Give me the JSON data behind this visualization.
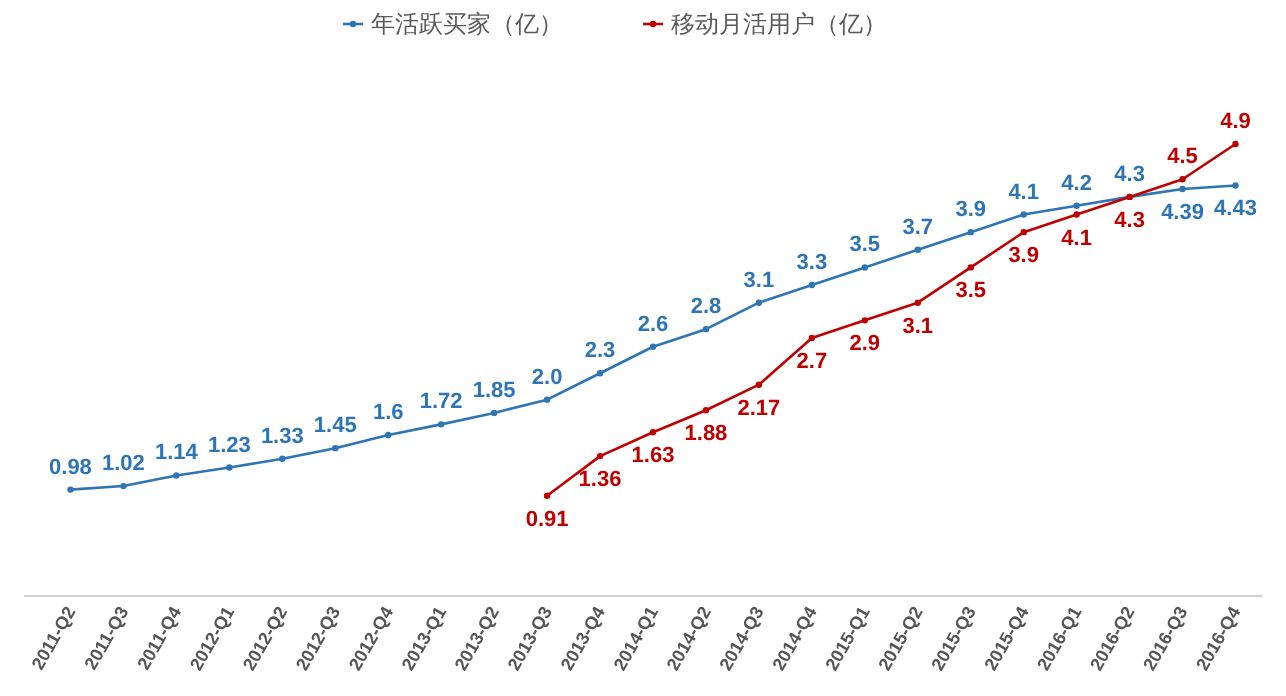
{
  "chart_data": {
    "type": "line",
    "legend": "top",
    "marker": "circle",
    "line_style": "solid",
    "categories": [
      "2011-Q2",
      "2011-Q3",
      "2011-Q4",
      "2012-Q1",
      "2012-Q2",
      "2012-Q3",
      "2012-Q4",
      "2013-Q1",
      "2013-Q2",
      "2013-Q3",
      "2013-Q4",
      "2014-Q1",
      "2014-Q2",
      "2014-Q3",
      "2014-Q4",
      "2015-Q1",
      "2015-Q2",
      "2015-Q3",
      "2015-Q4",
      "2016-Q1",
      "2016-Q2",
      "2016-Q3",
      "2016-Q4"
    ],
    "series": [
      {
        "name": "年活跃买家（亿）",
        "color": "#2e75b6",
        "values": [
          0.98,
          1.02,
          1.14,
          1.23,
          1.33,
          1.45,
          1.6,
          1.72,
          1.85,
          2.0,
          2.3,
          2.6,
          2.8,
          3.1,
          3.3,
          3.5,
          3.7,
          3.9,
          4.1,
          4.2,
          4.3,
          4.39,
          4.43
        ],
        "value_labels": [
          "0.98",
          "1.02",
          "1.14",
          "1.23",
          "1.33",
          "1.45",
          "1.6",
          "1.72",
          "1.85",
          "2.0",
          "2.3",
          "2.6",
          "2.8",
          "3.1",
          "3.3",
          "3.5",
          "3.7",
          "3.9",
          "4.1",
          "4.2",
          "4.3",
          "4.39",
          "4.43"
        ]
      },
      {
        "name": "移动月活用户（亿）",
        "color": "#c00000",
        "values": [
          null,
          null,
          null,
          null,
          null,
          null,
          null,
          null,
          null,
          0.91,
          1.36,
          1.63,
          1.88,
          2.17,
          2.7,
          2.9,
          3.1,
          3.5,
          3.9,
          4.1,
          4.3,
          4.5,
          4.9
        ],
        "value_labels": [
          null,
          null,
          null,
          null,
          null,
          null,
          null,
          null,
          null,
          "0.91",
          "1.36",
          "1.63",
          "1.88",
          "2.17",
          "2.7",
          "2.9",
          "3.1",
          "3.5",
          "3.9",
          "4.1",
          "4.3",
          "4.5",
          "4.9"
        ]
      }
    ]
  }
}
